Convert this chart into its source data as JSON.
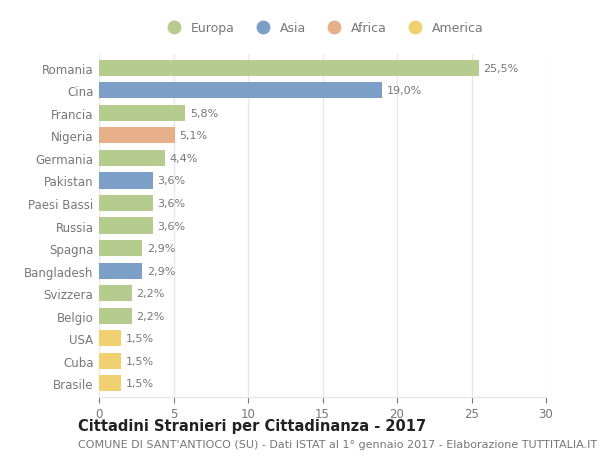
{
  "countries": [
    "Romania",
    "Cina",
    "Francia",
    "Nigeria",
    "Germania",
    "Pakistan",
    "Paesi Bassi",
    "Russia",
    "Spagna",
    "Bangladesh",
    "Svizzera",
    "Belgio",
    "USA",
    "Cuba",
    "Brasile"
  ],
  "values": [
    25.5,
    19.0,
    5.8,
    5.1,
    4.4,
    3.6,
    3.6,
    3.6,
    2.9,
    2.9,
    2.2,
    2.2,
    1.5,
    1.5,
    1.5
  ],
  "labels": [
    "25,5%",
    "19,0%",
    "5,8%",
    "5,1%",
    "4,4%",
    "3,6%",
    "3,6%",
    "3,6%",
    "2,9%",
    "2,9%",
    "2,2%",
    "2,2%",
    "1,5%",
    "1,5%",
    "1,5%"
  ],
  "continents": [
    "Europa",
    "Asia",
    "Europa",
    "Africa",
    "Europa",
    "Asia",
    "Europa",
    "Europa",
    "Europa",
    "Asia",
    "Europa",
    "Europa",
    "America",
    "America",
    "America"
  ],
  "continent_colors": {
    "Europa": "#b5cc8e",
    "Asia": "#7b9fc7",
    "Africa": "#e8b08a",
    "America": "#f0d070"
  },
  "legend_order": [
    "Europa",
    "Asia",
    "Africa",
    "America"
  ],
  "xlim": [
    0,
    30
  ],
  "xticks": [
    0,
    5,
    10,
    15,
    20,
    25,
    30
  ],
  "title": "Cittadini Stranieri per Cittadinanza - 2017",
  "subtitle": "COMUNE DI SANT'ANTIOCO (SU) - Dati ISTAT al 1° gennaio 2017 - Elaborazione TUTTITALIA.IT",
  "bg_color": "#ffffff",
  "grid_color": "#e8e8e8",
  "text_color": "#777777",
  "title_color": "#222222",
  "title_fontsize": 10.5,
  "subtitle_fontsize": 8,
  "label_fontsize": 8,
  "ytick_fontsize": 8.5,
  "xtick_fontsize": 8.5
}
